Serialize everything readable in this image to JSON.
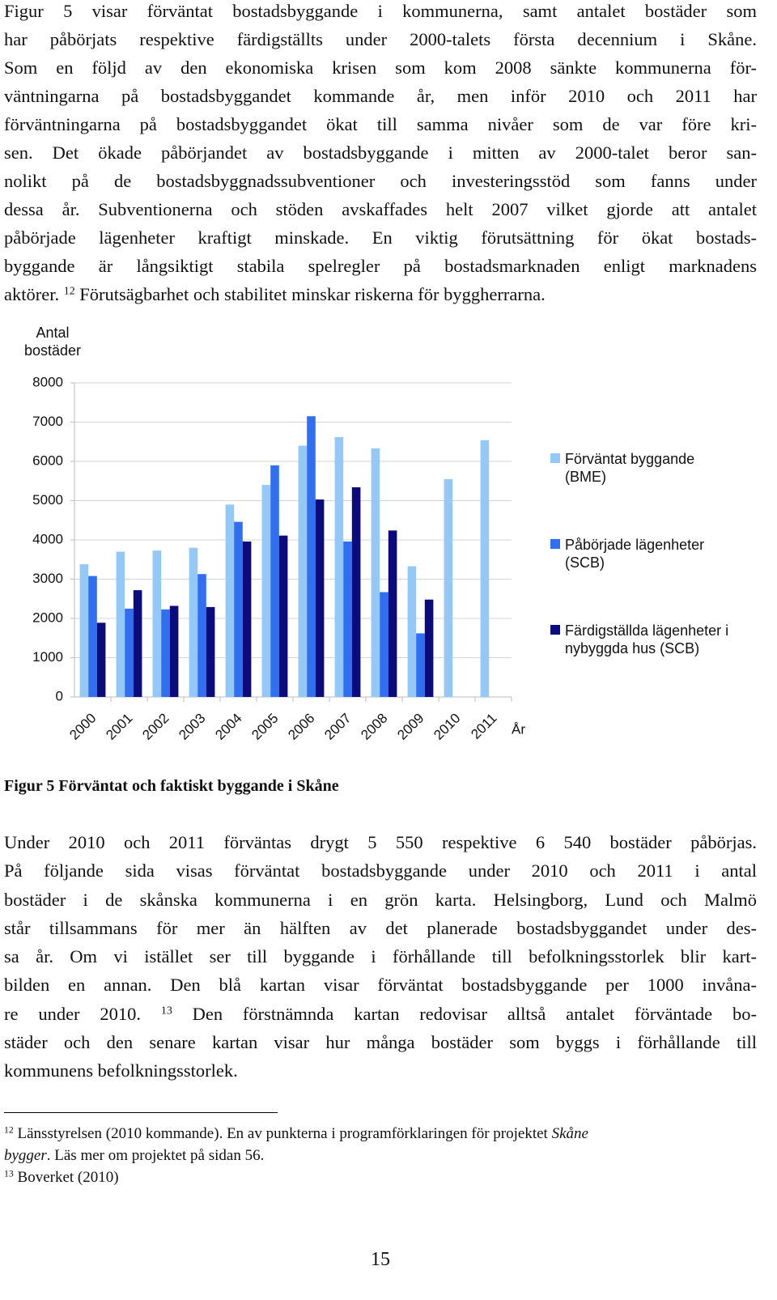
{
  "intro": {
    "lines": [
      [
        "Figur 5 visar förväntat bostadsbyggande i kommunerna, samt antalet bostäder som"
      ],
      [
        "har påbörjats respektive färdigställts under 2000-talets första decennium i Skåne."
      ],
      [
        "Som en följd av den ekonomiska krisen som kom 2008 sänkte kommunerna för-"
      ],
      [
        "väntningarna på bostadsbyggandet kommande år, men inför 2010 och 2011 har"
      ],
      [
        "förväntningarna på bostadsbyggandet ökat till samma nivåer som de var före kri-"
      ],
      [
        "sen. Det ökade påbörjandet av bostadsbyggande i mitten av 2000-talet beror san-"
      ],
      [
        "nolikt på de bostadsbyggnadssubventioner och investeringsstöd som fanns under"
      ],
      [
        "dessa år. Subventionerna och stöden avskaffades helt 2007 vilket gjorde att antalet"
      ],
      [
        "påbörjade lägenheter kraftigt minskade. En viktig förutsättning för ökat bostads-"
      ],
      [
        "byggande är långsiktigt stabila spelregler på bostadsmarknaden enligt marknadens"
      ],
      [
        "aktörer. ",
        {
          "sup": "12"
        },
        " Förutsägbarhet och stabilitet minskar riskerna för byggherrarna."
      ]
    ]
  },
  "chart_data": {
    "type": "bar",
    "ylabel": "Antal bostäder",
    "xlabel": "År",
    "categories": [
      "2000",
      "2001",
      "2002",
      "2003",
      "2004",
      "2005",
      "2006",
      "2007",
      "2008",
      "2009",
      "2010",
      "2011"
    ],
    "series": [
      {
        "name": "Förväntat byggande (BME)",
        "color": "#94c8f7",
        "values": [
          3380,
          3700,
          3730,
          3800,
          4900,
          5400,
          6400,
          6620,
          6330,
          3330,
          5550,
          6540
        ]
      },
      {
        "name": "Påbörjade lägenheter (SCB)",
        "color": "#2f6ff0",
        "values": [
          3080,
          2250,
          2230,
          3130,
          4460,
          5900,
          7150,
          3960,
          2670,
          1620,
          null,
          null
        ]
      },
      {
        "name": "Färdigställda lägenheter i nybyggda hus (SCB)",
        "color": "#0b0b7c",
        "values": [
          1890,
          2720,
          2320,
          2290,
          3960,
          4110,
          5030,
          5340,
          4240,
          2480,
          null,
          null
        ]
      }
    ],
    "ylim": [
      0,
      8000
    ],
    "yticks": [
      0,
      1000,
      2000,
      3000,
      4000,
      5000,
      6000,
      7000,
      8000
    ],
    "grid": true,
    "legend": "right"
  },
  "caption": "Figur 5 Förväntat och faktiskt byggande i Skåne",
  "body": {
    "lines": [
      [
        "Under 2010 och 2011 förväntas drygt 5 550 respektive 6 540 bostäder påbörjas."
      ],
      [
        "På följande sida visas förväntat bostadsbyggande under 2010 och 2011 i antal"
      ],
      [
        "bostäder i de skånska kommunerna i en grön karta. Helsingborg, Lund och Malmö"
      ],
      [
        "står tillsammans för mer än hälften av det planerade bostadsbyggandet under des-"
      ],
      [
        "sa år. Om vi istället ser till byggande i förhållande till befolkningsstorlek blir kart-"
      ],
      [
        "bilden en annan. Den blå kartan visar förväntat bostadsbyggande per 1000 invåna-"
      ],
      [
        "re under 2010. ",
        {
          "sup": "13"
        },
        " Den förstnämnda kartan redovisar alltså antalet förväntade bo-"
      ],
      [
        "städer och den senare kartan visar hur många bostäder som byggs i förhållande till"
      ],
      [
        "kommunens befolkningsstorlek."
      ]
    ]
  },
  "footnotes": {
    "lines": [
      [
        {
          "sup": "12"
        },
        " Länsstyrelsen (2010 kommande).  En av punkterna i programförklaringen för projektet ",
        {
          "it": "Skåne"
        }
      ],
      [
        {
          "it": "bygger"
        },
        ". Läs mer om projektet på sidan 56."
      ],
      [
        {
          "sup": "13"
        },
        " Boverket (2010)"
      ]
    ]
  },
  "page_number": "15"
}
